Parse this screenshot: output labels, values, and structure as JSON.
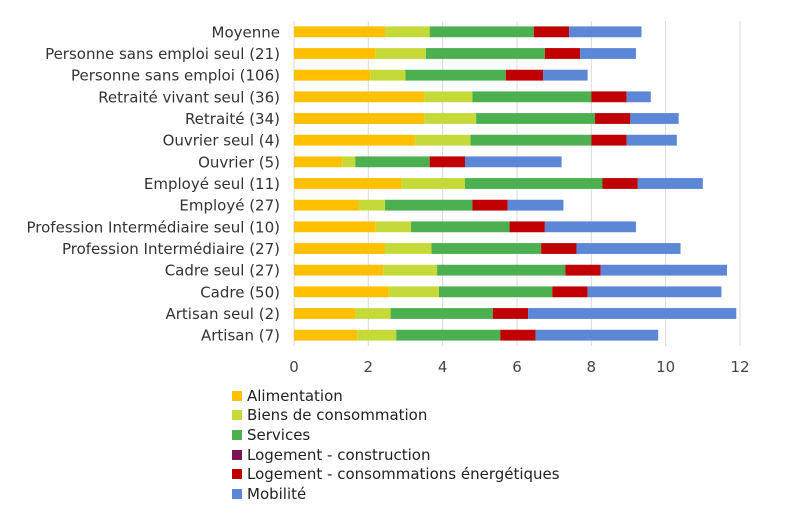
{
  "chart_data": {
    "type": "bar",
    "orientation": "horizontal",
    "stacked": true,
    "title": "",
    "xlabel": "",
    "ylabel": "",
    "xlim": [
      0,
      12
    ],
    "xticks": [
      0,
      2,
      4,
      6,
      8,
      10,
      12
    ],
    "grid": "vertical",
    "legend_position": "bottom",
    "categories": [
      "Moyenne",
      "Personne sans emploi seul (21)",
      "Personne sans emploi (106)",
      "Retraité vivant seul (36)",
      "Retraité (34)",
      "Ouvrier seul (4)",
      "Ouvrier (5)",
      "Employé seul (11)",
      "Employé (27)",
      "Profession Intermédiaire seul (10)",
      "Profession Intermédiaire (27)",
      "Cadre seul (27)",
      "Cadre (50)",
      "Artisan seul (2)",
      "Artisan (7)"
    ],
    "series": [
      {
        "name": "Alimentation",
        "color": "#FFC000",
        "values": [
          2.45,
          2.2,
          2.05,
          3.5,
          3.5,
          3.25,
          1.3,
          2.9,
          1.75,
          2.2,
          2.45,
          2.4,
          2.55,
          1.65,
          1.7
        ]
      },
      {
        "name": "Biens de consommation",
        "color": "#C5DA38",
        "values": [
          1.2,
          1.35,
          0.95,
          1.3,
          1.4,
          1.5,
          0.35,
          1.7,
          0.7,
          0.95,
          1.25,
          1.45,
          1.35,
          0.95,
          1.05
        ]
      },
      {
        "name": "Services",
        "color": "#4CAF50",
        "values": [
          2.8,
          3.2,
          2.7,
          3.2,
          3.2,
          3.25,
          2.0,
          3.7,
          2.35,
          2.65,
          2.95,
          3.45,
          3.05,
          2.75,
          2.8
        ]
      },
      {
        "name": "Logement - construction",
        "color": "#7B1456",
        "values": [
          0,
          0,
          0,
          0,
          0,
          0,
          0,
          0,
          0,
          0,
          0,
          0,
          0,
          0,
          0
        ]
      },
      {
        "name": "Logement - consommations énergétiques",
        "color": "#C00000",
        "values": [
          0.95,
          0.95,
          1.0,
          0.95,
          0.95,
          0.95,
          0.95,
          0.95,
          0.95,
          0.95,
          0.95,
          0.95,
          0.95,
          0.95,
          0.95
        ]
      },
      {
        "name": "Mobilité",
        "color": "#5B87D6",
        "values": [
          1.95,
          1.5,
          1.2,
          0.65,
          1.3,
          1.35,
          2.6,
          1.75,
          1.5,
          2.45,
          2.8,
          3.4,
          3.6,
          5.6,
          3.3
        ]
      }
    ]
  }
}
